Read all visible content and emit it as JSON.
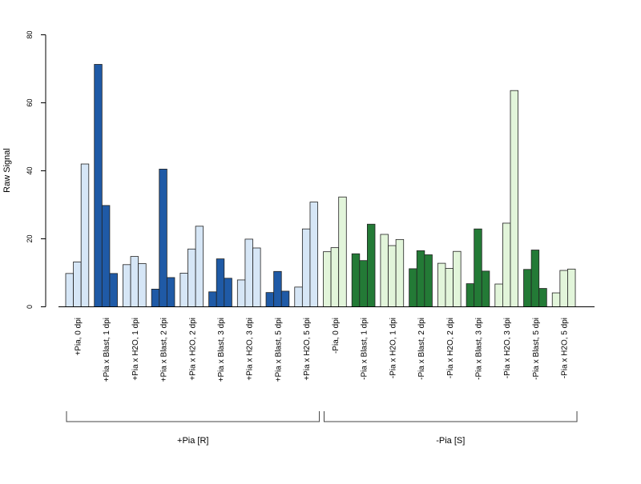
{
  "chart_data": {
    "type": "bar",
    "ylabel": "Raw Signal",
    "ylim": [
      0,
      80
    ],
    "yticks": [
      0,
      20,
      40,
      60,
      80
    ],
    "colors": {
      "plus_dark": "#1f5aa6",
      "plus_light": "#d6e6f6",
      "minus_dark": "#237a36",
      "minus_light": "#e2f5da",
      "axis": "#444444"
    },
    "groups": [
      {
        "label": "+Pia, 0 dpi",
        "values": [
          9.8,
          13.2,
          42.0
        ],
        "shade": "plus_light"
      },
      {
        "label": "+Pia x Blast, 1 dpi",
        "values": [
          71.3,
          29.8,
          9.8
        ],
        "shade": "plus_dark"
      },
      {
        "label": "+Pia x H2O, 1 dpi",
        "values": [
          12.4,
          14.8,
          12.7
        ],
        "shade": "plus_light"
      },
      {
        "label": "+Pia x Blast, 2 dpi",
        "values": [
          5.2,
          40.5,
          8.6
        ],
        "shade": "plus_dark"
      },
      {
        "label": "+Pia x H2O, 2 dpi",
        "values": [
          9.9,
          17.0,
          23.7
        ],
        "shade": "plus_light"
      },
      {
        "label": "+Pia x Blast, 3 dpi",
        "values": [
          4.4,
          14.1,
          8.4
        ],
        "shade": "plus_dark"
      },
      {
        "label": "+Pia x H2O, 3 dpi",
        "values": [
          7.9,
          19.9,
          17.3
        ],
        "shade": "plus_light"
      },
      {
        "label": "+Pia x Blast, 5 dpi",
        "values": [
          4.2,
          10.4,
          4.6
        ],
        "shade": "plus_dark"
      },
      {
        "label": "+Pia x H2O, 5 dpi",
        "values": [
          5.8,
          22.9,
          30.8
        ],
        "shade": "plus_light"
      },
      {
        "label": "-Pia, 0 dpi",
        "values": [
          16.2,
          17.4,
          32.3
        ],
        "shade": "minus_light"
      },
      {
        "label": "-Pia x Blast, 1 dpi",
        "values": [
          15.6,
          13.6,
          24.3
        ],
        "shade": "minus_dark"
      },
      {
        "label": "-Pia x H2O, 1 dpi",
        "values": [
          21.3,
          18.0,
          19.8
        ],
        "shade": "minus_light"
      },
      {
        "label": "-Pia x Blast, 2 dpi",
        "values": [
          11.2,
          16.5,
          15.3
        ],
        "shade": "minus_dark"
      },
      {
        "label": "-Pia x H2O, 2 dpi",
        "values": [
          12.8,
          11.3,
          16.3
        ],
        "shade": "minus_light"
      },
      {
        "label": "-Pia x Blast, 3 dpi",
        "values": [
          6.8,
          22.9,
          10.5
        ],
        "shade": "minus_dark"
      },
      {
        "label": "-Pia x H2O, 3 dpi",
        "values": [
          6.7,
          24.6,
          63.6
        ],
        "shade": "minus_light"
      },
      {
        "label": "-Pia x Blast, 5 dpi",
        "values": [
          11.0,
          16.7,
          5.4
        ],
        "shade": "minus_dark"
      },
      {
        "label": "-Pia x H2O, 5 dpi",
        "values": [
          4.1,
          10.7,
          11.1
        ],
        "shade": "minus_light"
      }
    ],
    "brackets": [
      {
        "label": "+Pia [R]",
        "from": 0,
        "to": 8
      },
      {
        "label": "-Pia [S]",
        "from": 9,
        "to": 17
      }
    ]
  }
}
